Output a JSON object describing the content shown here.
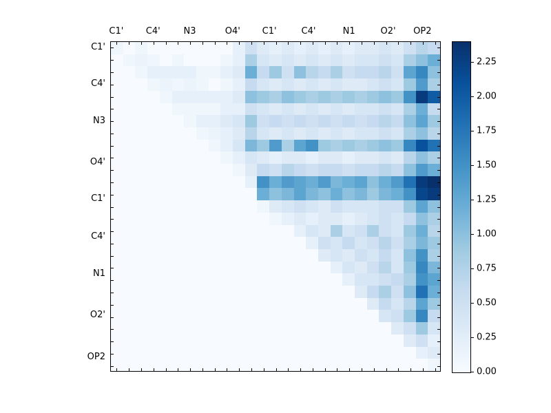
{
  "figure": {
    "background": "#ffffff",
    "accent_dark": "#08306b",
    "accent_light": "#f7fbff"
  },
  "chart_data": {
    "type": "heatmap",
    "title": "",
    "colormap": "Blues",
    "n": 27,
    "grid": false,
    "x_tick_labels": [
      "C1'",
      "C4'",
      "N3",
      "O4'",
      "C1'",
      "C4'",
      "N1",
      "O2'",
      "OP2"
    ],
    "y_tick_labels": [
      "C1'",
      "C4'",
      "N3",
      "O4'",
      "C1'",
      "C4'",
      "N1",
      "O2'",
      "OP2"
    ],
    "x_tick_cells": [
      0.5,
      3.5,
      6.5,
      10.0,
      13.0,
      16.2,
      19.5,
      22.7,
      25.5
    ],
    "y_tick_cells": [
      0.5,
      3.5,
      6.5,
      9.9,
      12.9,
      16.0,
      19.0,
      22.4,
      25.8
    ],
    "vmin": 0.0,
    "vmax": 2.4,
    "colorbar_tick_labels": [
      "0.00",
      "0.25",
      "0.50",
      "0.75",
      "1.00",
      "1.25",
      "1.50",
      "1.75",
      "2.00",
      "2.25"
    ],
    "matrix": [
      [
        0.1,
        0,
        0.1,
        0,
        0,
        0,
        0,
        0,
        0,
        0,
        0.2,
        0.5,
        0.3,
        0.2,
        0.3,
        0.2,
        0.3,
        0.2,
        0.3,
        0.2,
        0.3,
        0.3,
        0.4,
        0.3,
        0.5,
        0.7,
        0.6
      ],
      [
        0,
        0.1,
        0.15,
        0.1,
        0,
        0.1,
        0,
        0,
        0,
        0.1,
        0.2,
        0.8,
        0.4,
        0.3,
        0.4,
        0.3,
        0.4,
        0.3,
        0.4,
        0.3,
        0.4,
        0.4,
        0.5,
        0.4,
        0.8,
        1.0,
        1.2
      ],
      [
        0,
        0,
        0.1,
        0.2,
        0.2,
        0.2,
        0.2,
        0.1,
        0.1,
        0.2,
        0.3,
        1.2,
        0.6,
        0.9,
        0.5,
        1.0,
        0.7,
        0.6,
        0.8,
        0.5,
        0.6,
        0.6,
        0.7,
        0.5,
        1.3,
        1.6,
        1.0
      ],
      [
        0,
        0,
        0,
        0.1,
        0.15,
        0.1,
        0.15,
        0.1,
        0,
        0.1,
        0.2,
        0.6,
        0.4,
        0.3,
        0.4,
        0.3,
        0.4,
        0.3,
        0.4,
        0.3,
        0.3,
        0.4,
        0.5,
        0.4,
        0.9,
        1.4,
        0.8
      ],
      [
        0,
        0,
        0,
        0,
        0.1,
        0.2,
        0.2,
        0.2,
        0.2,
        0.2,
        0.3,
        1.0,
        0.9,
        0.8,
        1.0,
        0.9,
        0.8,
        0.9,
        0.8,
        0.9,
        0.8,
        0.9,
        1.0,
        0.9,
        1.5,
        2.3,
        2.0
      ],
      [
        0,
        0,
        0,
        0,
        0,
        0.1,
        0.1,
        0.1,
        0.1,
        0.2,
        0.2,
        0.5,
        0.4,
        0.3,
        0.4,
        0.3,
        0.4,
        0.3,
        0.4,
        0.3,
        0.4,
        0.4,
        0.5,
        0.4,
        0.8,
        1.2,
        0.6
      ],
      [
        0,
        0,
        0,
        0,
        0,
        0,
        0.1,
        0.2,
        0.2,
        0.3,
        0.4,
        0.9,
        0.5,
        0.6,
        0.5,
        0.6,
        0.5,
        0.6,
        0.5,
        0.6,
        0.5,
        0.6,
        0.7,
        0.6,
        1.0,
        1.3,
        0.9
      ],
      [
        0,
        0,
        0,
        0,
        0,
        0,
        0,
        0.1,
        0.15,
        0.2,
        0.3,
        0.7,
        0.4,
        0.3,
        0.4,
        0.3,
        0.4,
        0.3,
        0.4,
        0.3,
        0.4,
        0.4,
        0.5,
        0.4,
        0.8,
        1.0,
        0.7
      ],
      [
        0,
        0,
        0,
        0,
        0,
        0,
        0,
        0,
        0.1,
        0.2,
        0.4,
        1.1,
        0.9,
        1.4,
        0.8,
        1.3,
        1.5,
        0.9,
        0.8,
        0.9,
        0.8,
        0.9,
        1.0,
        0.9,
        1.6,
        2.1,
        1.8
      ],
      [
        0,
        0,
        0,
        0,
        0,
        0,
        0,
        0,
        0,
        0.1,
        0.2,
        0.4,
        0.3,
        0.2,
        0.3,
        0.3,
        0.2,
        0.3,
        0.3,
        0.2,
        0.3,
        0.3,
        0.4,
        0.3,
        0.7,
        1.0,
        0.8
      ],
      [
        0,
        0,
        0,
        0,
        0,
        0,
        0,
        0,
        0,
        0,
        0.1,
        0.3,
        0.6,
        0.5,
        0.7,
        0.6,
        0.5,
        0.6,
        0.6,
        0.5,
        0.6,
        0.6,
        0.7,
        0.6,
        1.0,
        1.4,
        1.2
      ],
      [
        0,
        0,
        0,
        0,
        0,
        0,
        0,
        0,
        0,
        0,
        0,
        0.2,
        1.5,
        1.2,
        1.4,
        1.3,
        1.2,
        1.4,
        1.1,
        1.2,
        1.3,
        1.0,
        1.2,
        1.4,
        1.8,
        2.3,
        2.4
      ],
      [
        0,
        0,
        0,
        0,
        0,
        0,
        0,
        0,
        0,
        0,
        0,
        0,
        1.2,
        1.0,
        1.1,
        1.3,
        1.1,
        1.0,
        1.2,
        1.0,
        1.1,
        0.9,
        1.1,
        1.2,
        1.5,
        2.2,
        2.3
      ],
      [
        0,
        0,
        0,
        0,
        0,
        0,
        0,
        0,
        0,
        0,
        0,
        0,
        0.1,
        0.3,
        0.4,
        0.5,
        0.4,
        0.3,
        0.5,
        0.4,
        0.4,
        0.4,
        0.5,
        0.5,
        0.9,
        1.3,
        1.0
      ],
      [
        0,
        0,
        0,
        0,
        0,
        0,
        0,
        0,
        0,
        0,
        0,
        0,
        0,
        0.1,
        0.2,
        0.3,
        0.2,
        0.3,
        0.3,
        0.2,
        0.3,
        0.4,
        0.5,
        0.4,
        0.6,
        1.0,
        0.8
      ],
      [
        0,
        0,
        0,
        0,
        0,
        0,
        0,
        0,
        0,
        0,
        0,
        0,
        0,
        0,
        0,
        0.2,
        0.4,
        0.3,
        0.8,
        0.4,
        0.5,
        0.8,
        0.5,
        0.4,
        0.9,
        1.2,
        0.7
      ],
      [
        0,
        0,
        0,
        0,
        0,
        0,
        0,
        0,
        0,
        0,
        0,
        0,
        0,
        0,
        0,
        0,
        0.2,
        0.5,
        0.4,
        0.6,
        0.4,
        0.5,
        0.7,
        0.5,
        0.8,
        1.1,
        0.9
      ],
      [
        0,
        0,
        0,
        0,
        0,
        0,
        0,
        0,
        0,
        0,
        0,
        0,
        0,
        0,
        0,
        0,
        0,
        0.3,
        0.4,
        0.3,
        0.5,
        0.4,
        0.6,
        0.4,
        1.0,
        1.5,
        0.8
      ],
      [
        0,
        0,
        0,
        0,
        0,
        0,
        0,
        0,
        0,
        0,
        0,
        0,
        0,
        0,
        0,
        0,
        0,
        0,
        0.2,
        0.4,
        0.3,
        0.5,
        0.7,
        0.4,
        0.9,
        1.6,
        1.1
      ],
      [
        0,
        0,
        0,
        0,
        0,
        0,
        0,
        0,
        0,
        0,
        0,
        0,
        0,
        0,
        0,
        0,
        0,
        0,
        0,
        0.2,
        0.4,
        0.4,
        0.5,
        0.6,
        0.8,
        1.5,
        1.3
      ],
      [
        0,
        0,
        0,
        0,
        0,
        0,
        0,
        0,
        0,
        0,
        0,
        0,
        0,
        0,
        0,
        0,
        0,
        0,
        0,
        0,
        0.3,
        0.6,
        0.8,
        0.5,
        1.0,
        1.8,
        1.2
      ],
      [
        0,
        0,
        0,
        0,
        0,
        0,
        0,
        0,
        0,
        0,
        0,
        0,
        0,
        0,
        0,
        0,
        0,
        0,
        0,
        0,
        0,
        0.3,
        0.6,
        0.4,
        0.7,
        1.3,
        0.9
      ],
      [
        0,
        0,
        0,
        0,
        0,
        0,
        0,
        0,
        0,
        0,
        0,
        0,
        0,
        0,
        0,
        0,
        0,
        0,
        0,
        0,
        0,
        0,
        0.4,
        0.5,
        0.9,
        1.6,
        0.6
      ],
      [
        0,
        0,
        0,
        0,
        0,
        0,
        0,
        0,
        0,
        0,
        0,
        0,
        0,
        0,
        0,
        0,
        0,
        0,
        0,
        0,
        0,
        0,
        0,
        0.3,
        0.5,
        0.9,
        0.4
      ],
      [
        0,
        0,
        0,
        0,
        0,
        0,
        0,
        0,
        0,
        0,
        0,
        0,
        0,
        0,
        0,
        0,
        0,
        0,
        0,
        0,
        0,
        0,
        0,
        0,
        0.3,
        0.5,
        0.2
      ],
      [
        0,
        0,
        0,
        0,
        0,
        0,
        0,
        0,
        0,
        0,
        0,
        0,
        0,
        0,
        0,
        0,
        0,
        0,
        0,
        0,
        0,
        0,
        0,
        0,
        0,
        0.2,
        0.3
      ],
      [
        0,
        0,
        0,
        0,
        0,
        0,
        0,
        0,
        0,
        0,
        0,
        0,
        0,
        0,
        0,
        0,
        0,
        0,
        0,
        0,
        0,
        0,
        0,
        0,
        0,
        0,
        0.1
      ]
    ]
  }
}
